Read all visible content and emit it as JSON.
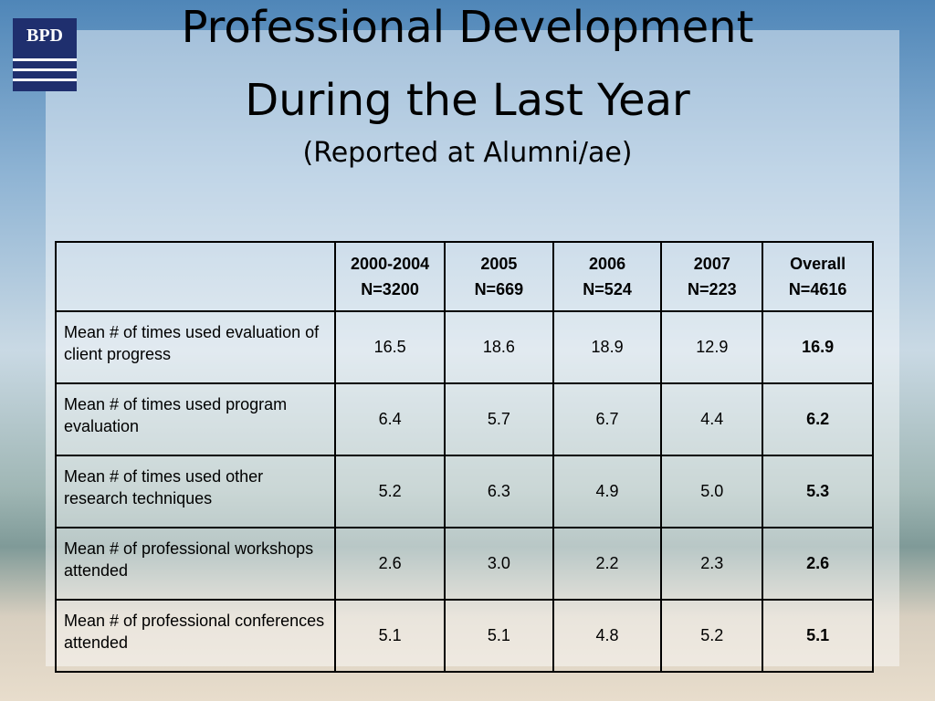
{
  "logo": "BPD",
  "title": {
    "line1": "Professional Development",
    "line2": "During the Last Year",
    "subtitle": "(Reported at Alumni/ae)"
  },
  "table": {
    "columns": [
      {
        "period": "2000-2004",
        "n": "N=3200"
      },
      {
        "period": "2005",
        "n": "N=669"
      },
      {
        "period": "2006",
        "n": "N=524"
      },
      {
        "period": "2007",
        "n": "N=223"
      },
      {
        "period": "Overall",
        "n": "N=4616"
      }
    ],
    "rows": [
      {
        "label": "Mean # of times used evaluation of client progress",
        "values": [
          "16.5",
          "18.6",
          "18.9",
          "12.9",
          "16.9"
        ]
      },
      {
        "label": "Mean # of times used program evaluation",
        "values": [
          "6.4",
          "5.7",
          "6.7",
          "4.4",
          "6.2"
        ]
      },
      {
        "label": "Mean # of times used other research techniques",
        "values": [
          "5.2",
          "6.3",
          "4.9",
          "5.0",
          "5.3"
        ]
      },
      {
        "label": "Mean # of professional workshops attended",
        "values": [
          "2.6",
          "3.0",
          "2.2",
          "2.3",
          "2.6"
        ]
      },
      {
        "label": "Mean # of professional conferences attended",
        "values": [
          "5.1",
          "5.1",
          "4.8",
          "5.2",
          "5.1"
        ]
      }
    ]
  }
}
